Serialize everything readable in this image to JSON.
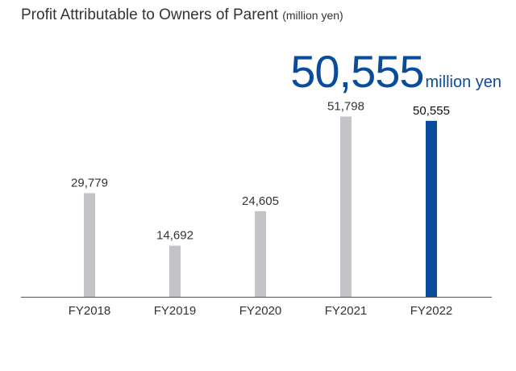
{
  "header": {
    "title": "Profit Attributable to Owners of Parent",
    "title_unit": "(million yen)"
  },
  "highlight": {
    "value": "50,555",
    "unit": "million yen"
  },
  "colors": {
    "bar_default": "#c4c4c8",
    "bar_highlight": "#0a4c9c",
    "axis": "#555555"
  },
  "chart_data": {
    "type": "bar",
    "title": "Profit Attributable to Owners of Parent (million yen)",
    "categories": [
      "FY2018",
      "FY2019",
      "FY2020",
      "FY2021",
      "FY2022"
    ],
    "values": [
      29779,
      14692,
      24605,
      51798,
      50555
    ],
    "value_labels": [
      "29,779",
      "14,692",
      "24,605",
      "51,798",
      "50,555"
    ],
    "highlighted_category": "FY2022",
    "ylim": [
      0,
      57000
    ],
    "grid": false,
    "xlabel": "",
    "ylabel": ""
  }
}
